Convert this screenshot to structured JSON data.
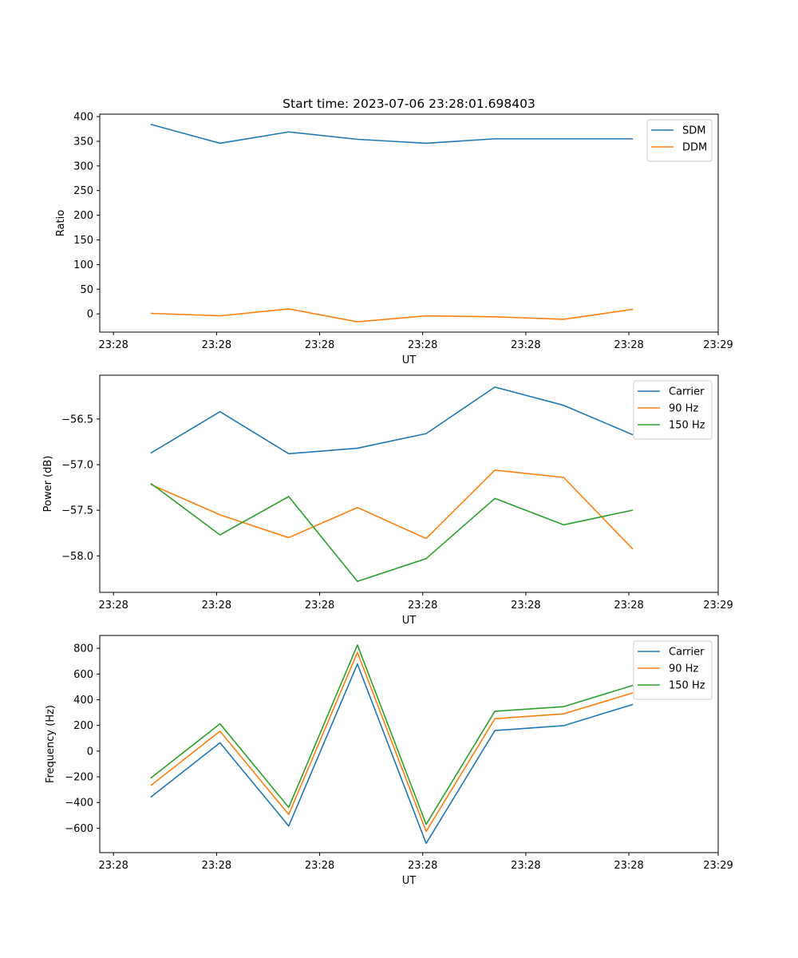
{
  "chart_data": [
    {
      "type": "line",
      "title": "Start time: 2023-07-06 23:28:01.698403",
      "xlabel": "UT",
      "ylabel": "Ratio",
      "xlim": [
        0,
        9
      ],
      "ylim": [
        -37,
        405
      ],
      "x": [
        0.75,
        1.75,
        2.75,
        3.75,
        4.75,
        5.75,
        6.75,
        7.75
      ],
      "x_ticks": [
        0.2,
        1.7,
        3.2,
        4.7,
        6.2,
        7.7,
        9.0
      ],
      "x_tick_labels": [
        "23:28",
        "23:28",
        "23:28",
        "23:28",
        "23:28",
        "23:28",
        "23:29"
      ],
      "y_ticks": [
        0,
        50,
        100,
        150,
        200,
        250,
        300,
        350,
        400
      ],
      "y_tick_labels": [
        "0",
        "50",
        "100",
        "150",
        "200",
        "250",
        "300",
        "350",
        "400"
      ],
      "legend_position": "top-right",
      "series": [
        {
          "name": "SDM",
          "color": "#1f77b4",
          "values": [
            384,
            346,
            369,
            354,
            346,
            355,
            355,
            355
          ]
        },
        {
          "name": "DDM",
          "color": "#ff7f0e",
          "values": [
            1,
            -4,
            10,
            -16,
            -4,
            -6,
            -11,
            9
          ]
        }
      ]
    },
    {
      "type": "line",
      "title": "",
      "xlabel": "UT",
      "ylabel": "Power (dB)",
      "xlim": [
        0,
        9
      ],
      "ylim": [
        -58.4,
        -56.02
      ],
      "x": [
        0.75,
        1.75,
        2.75,
        3.75,
        4.75,
        5.75,
        6.75,
        7.75
      ],
      "x_ticks": [
        0.2,
        1.7,
        3.2,
        4.7,
        6.2,
        7.7,
        9.0
      ],
      "x_tick_labels": [
        "23:28",
        "23:28",
        "23:28",
        "23:28",
        "23:28",
        "23:28",
        "23:29"
      ],
      "y_ticks": [
        -58.0,
        -57.5,
        -57.0,
        -56.5
      ],
      "y_tick_labels": [
        "−58.0",
        "−57.5",
        "−57.0",
        "−56.5"
      ],
      "legend_position": "top-right",
      "series": [
        {
          "name": "Carrier",
          "color": "#1f77b4",
          "values": [
            -56.87,
            -56.42,
            -56.88,
            -56.82,
            -56.66,
            -56.15,
            -56.35,
            -56.67
          ]
        },
        {
          "name": "90 Hz",
          "color": "#ff7f0e",
          "values": [
            -57.22,
            -57.55,
            -57.8,
            -57.47,
            -57.81,
            -57.06,
            -57.14,
            -57.92
          ]
        },
        {
          "name": "150 Hz",
          "color": "#2ca02c",
          "values": [
            -57.21,
            -57.77,
            -57.35,
            -58.28,
            -58.03,
            -57.37,
            -57.66,
            -57.5
          ]
        }
      ]
    },
    {
      "type": "line",
      "title": "",
      "xlabel": "UT",
      "ylabel": "Frequency (Hz)",
      "xlim": [
        0,
        9
      ],
      "ylim": [
        -790,
        900
      ],
      "x": [
        0.75,
        1.75,
        2.75,
        3.75,
        4.75,
        5.75,
        6.75,
        7.75
      ],
      "x_ticks": [
        0.2,
        1.7,
        3.2,
        4.7,
        6.2,
        7.7,
        9.0
      ],
      "x_tick_labels": [
        "23:28",
        "23:28",
        "23:28",
        "23:28",
        "23:28",
        "23:28",
        "23:29"
      ],
      "y_ticks": [
        -600,
        -400,
        -200,
        0,
        200,
        400,
        600,
        800
      ],
      "y_tick_labels": [
        "−600",
        "−400",
        "−200",
        "0",
        "200",
        "400",
        "600",
        "800"
      ],
      "legend_position": "top-right",
      "series": [
        {
          "name": "Carrier",
          "color": "#1f77b4",
          "values": [
            -355,
            65,
            -583,
            678,
            -718,
            160,
            198,
            362
          ]
        },
        {
          "name": "90 Hz",
          "color": "#ff7f0e",
          "values": [
            -265,
            155,
            -493,
            768,
            -625,
            252,
            290,
            452
          ]
        },
        {
          "name": "150 Hz",
          "color": "#2ca02c",
          "values": [
            -207,
            213,
            -438,
            826,
            -570,
            310,
            346,
            510
          ]
        }
      ]
    }
  ]
}
